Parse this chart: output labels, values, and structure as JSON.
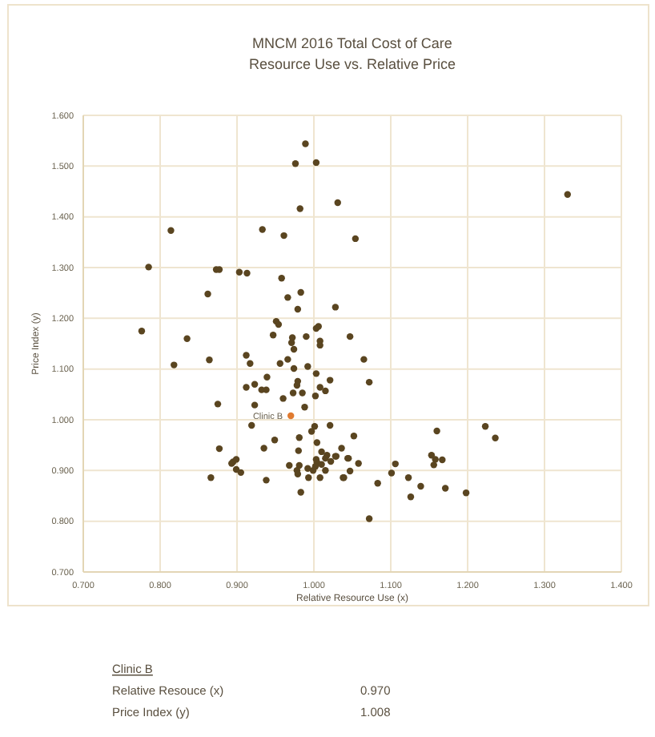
{
  "chart_data": {
    "type": "scatter",
    "title": "MNCM 2016  Total Cost of Care",
    "subtitle": "Resource Use vs. Relative Price",
    "xlabel": "Relative Resource Use (x)",
    "ylabel": "Price Index (y)",
    "xlim": [
      0.7,
      1.4
    ],
    "ylim": [
      0.7,
      1.6
    ],
    "xticks": [
      {
        "value": 0.7,
        "label": "0.700"
      },
      {
        "value": 0.8,
        "label": "0.800"
      },
      {
        "value": 0.9,
        "label": "0.900"
      },
      {
        "value": 1.0,
        "label": "1.000"
      },
      {
        "value": 1.1,
        "label": "1.100"
      },
      {
        "value": 1.2,
        "label": "1.200"
      },
      {
        "value": 1.3,
        "label": "1.300"
      },
      {
        "value": 1.4,
        "label": "1.400"
      }
    ],
    "yticks": [
      {
        "value": 0.7,
        "label": "0.700"
      },
      {
        "value": 0.8,
        "label": "0.800"
      },
      {
        "value": 0.9,
        "label": "0.900"
      },
      {
        "value": 1.0,
        "label": "1.000"
      },
      {
        "value": 1.1,
        "label": "1.100"
      },
      {
        "value": 1.2,
        "label": "1.200"
      },
      {
        "value": 1.3,
        "label": "1.300"
      },
      {
        "value": 1.4,
        "label": "1.400"
      },
      {
        "value": 1.5,
        "label": "1.500"
      },
      {
        "value": 1.6,
        "label": "1.600"
      }
    ],
    "grid": true,
    "marker": "circle",
    "series": [
      {
        "color": "#5a4520",
        "x": [
          0.989,
          0.976,
          1.003,
          0.982,
          1.031,
          0.814,
          0.933,
          0.961,
          0.785,
          0.873,
          0.877,
          0.903,
          0.913,
          0.958,
          0.862,
          0.966,
          0.983,
          0.979,
          1.028,
          0.776,
          0.835,
          0.951,
          0.954,
          0.947,
          0.972,
          0.971,
          0.974,
          0.99,
          1.003,
          1.006,
          1.008,
          1.008,
          1.047,
          1.33,
          1.054,
          0.818,
          0.864,
          0.912,
          0.917,
          0.956,
          0.966,
          0.974,
          0.992,
          1.003,
          1.021,
          0.939,
          0.923,
          0.979,
          0.978,
          0.912,
          0.932,
          0.938,
          0.973,
          0.985,
          1.002,
          1.008,
          1.015,
          0.96,
          0.988,
          0.875,
          0.923,
          1.001,
          0.997,
          1.021,
          0.919,
          0.949,
          0.981,
          1.004,
          0.935,
          0.98,
          0.877,
          1.01,
          1.017,
          1.015,
          1.003,
          1.004,
          1.028,
          1.036,
          1.044,
          1.022,
          0.899,
          0.895,
          0.893,
          0.899,
          0.905,
          0.968,
          0.981,
          0.978,
          0.979,
          0.992,
          1.002,
          0.999,
          1.01,
          1.015,
          0.993,
          1.008,
          1.038,
          0.866,
          0.938,
          0.983,
          1.065,
          1.072,
          1.052,
          1.029,
          1.045,
          1.058,
          1.039,
          1.047,
          1.083,
          1.072,
          1.101,
          1.106,
          1.123,
          1.126,
          1.139,
          1.16,
          1.153,
          1.158,
          1.156,
          1.167,
          1.171,
          1.198,
          1.223,
          1.236
        ],
        "values": [
          1.544,
          1.505,
          1.507,
          1.416,
          1.428,
          1.373,
          1.375,
          1.363,
          1.301,
          1.296,
          1.296,
          1.291,
          1.289,
          1.279,
          1.248,
          1.241,
          1.251,
          1.218,
          1.222,
          1.175,
          1.16,
          1.194,
          1.188,
          1.167,
          1.162,
          1.152,
          1.139,
          1.164,
          1.18,
          1.184,
          1.155,
          1.147,
          1.164,
          1.444,
          1.357,
          1.108,
          1.118,
          1.127,
          1.111,
          1.111,
          1.119,
          1.101,
          1.105,
          1.091,
          1.078,
          1.084,
          1.07,
          1.076,
          1.068,
          1.064,
          1.059,
          1.059,
          1.053,
          1.053,
          1.047,
          1.064,
          1.057,
          1.042,
          1.025,
          1.031,
          1.029,
          0.987,
          0.977,
          0.989,
          0.989,
          0.96,
          0.965,
          0.955,
          0.944,
          0.939,
          0.943,
          0.937,
          0.93,
          0.924,
          0.922,
          0.916,
          0.928,
          0.944,
          0.924,
          0.918,
          0.922,
          0.917,
          0.914,
          0.902,
          0.896,
          0.91,
          0.91,
          0.9,
          0.893,
          0.904,
          0.908,
          0.9,
          0.912,
          0.9,
          0.886,
          0.886,
          0.886,
          0.886,
          0.881,
          0.857,
          1.119,
          1.074,
          0.968,
          0.928,
          0.924,
          0.914,
          0.886,
          0.899,
          0.875,
          0.805,
          0.895,
          0.913,
          0.886,
          0.848,
          0.869,
          0.978,
          0.93,
          0.922,
          0.911,
          0.921,
          0.865,
          0.856,
          0.987,
          0.964
        ]
      },
      {
        "color": "#e07b30",
        "x": [
          0.97
        ],
        "values": [
          1.008
        ]
      }
    ],
    "annotations": [
      {
        "text": "Clinic B",
        "x": 0.97,
        "y": 1.008
      },
      "Clinic B",
      "Relative Resouce (x)",
      "0.970",
      "Price Index (y)",
      "1.008"
    ]
  }
}
